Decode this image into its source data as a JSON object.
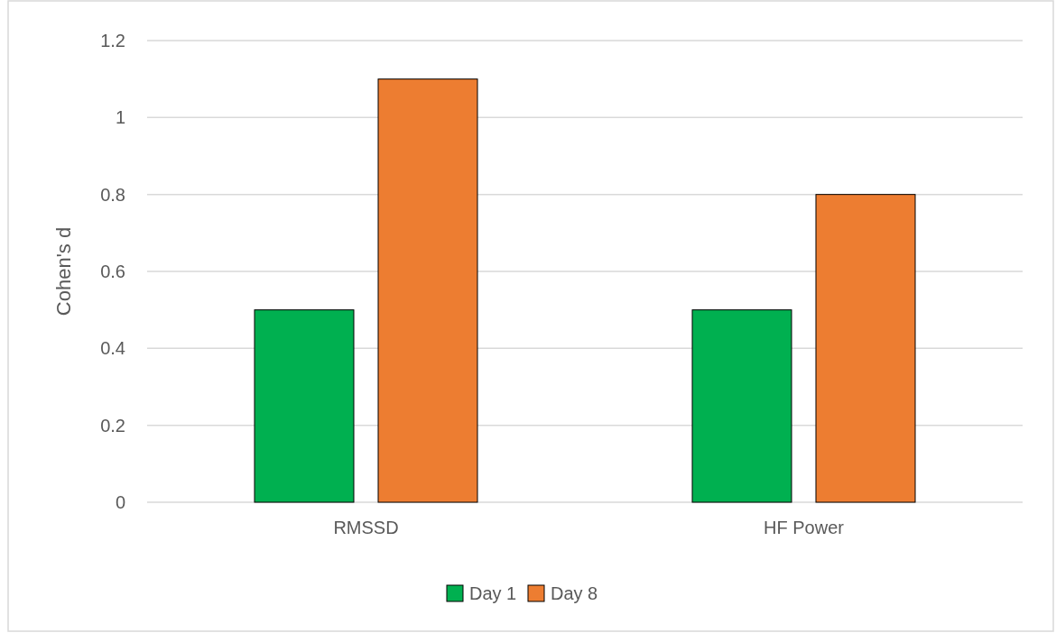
{
  "chart_data": {
    "type": "bar",
    "ylabel": "Cohen's d",
    "categories": [
      "RMSSD",
      "HF Power"
    ],
    "series": [
      {
        "name": "Day 1",
        "color": "#00b050",
        "values": [
          0.5,
          0.5
        ]
      },
      {
        "name": "Day 8",
        "color": "#ed7d31",
        "values": [
          1.1,
          0.8
        ]
      }
    ],
    "ylim": [
      0,
      1.2
    ],
    "yticks": [
      0,
      0.2,
      0.4,
      0.6,
      0.8,
      1,
      1.2
    ],
    "grid": "y",
    "legend": "bottom"
  }
}
